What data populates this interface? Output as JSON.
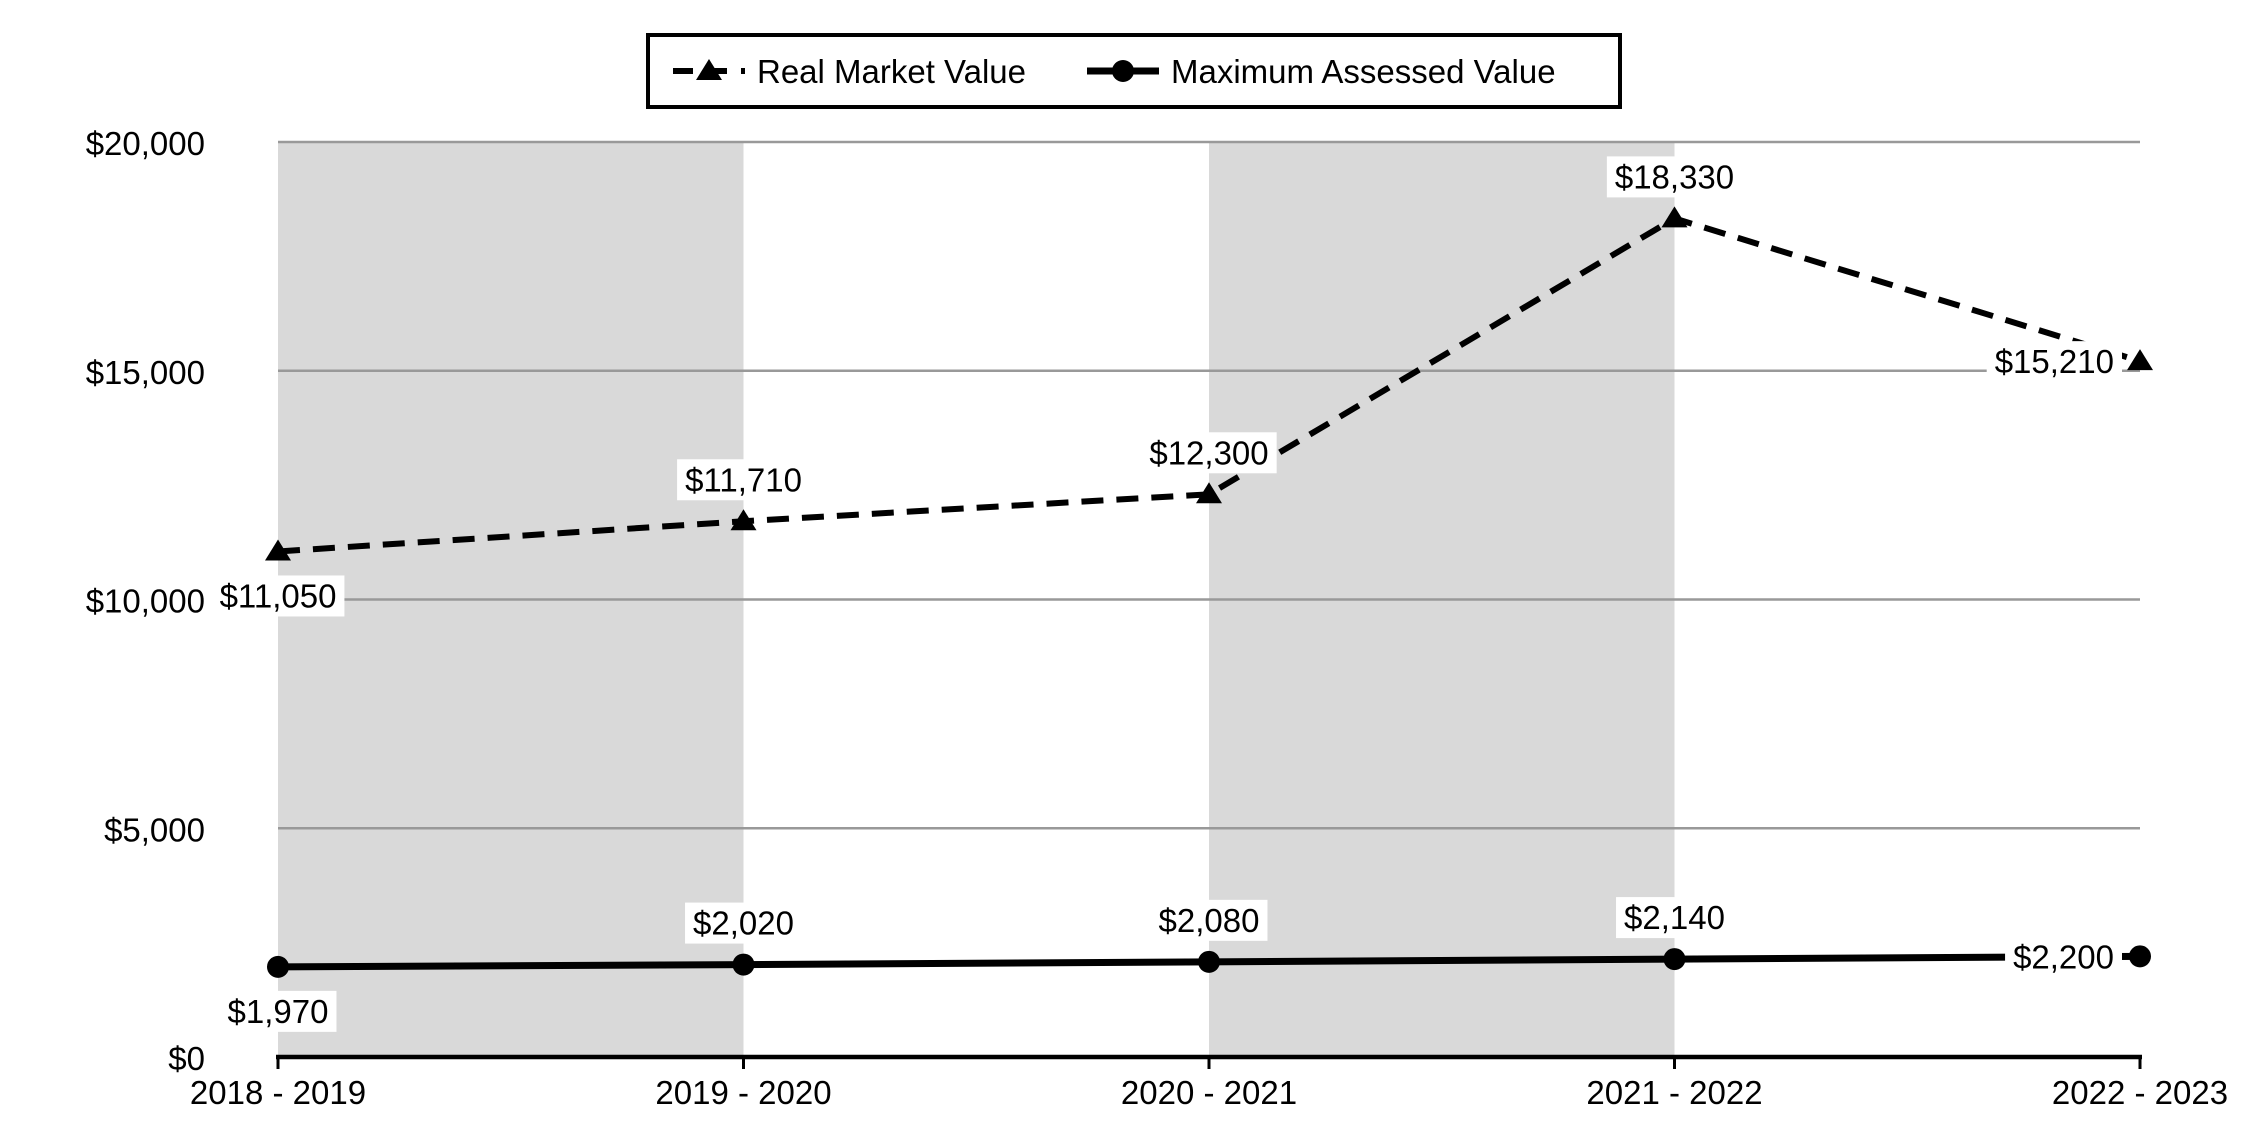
{
  "chart_data": {
    "type": "line",
    "title": "",
    "xlabel": "",
    "ylabel": "",
    "categories": [
      "2018 - 2019",
      "2019 - 2020",
      "2020 - 2021",
      "2021 - 2022",
      "2022 - 2023"
    ],
    "series": [
      {
        "name": "Real Market Value",
        "values": [
          11050,
          11710,
          12300,
          18330,
          15210
        ],
        "labels": [
          "$11,050",
          "$11,710",
          "$12,300",
          "$18,330",
          "$15,210"
        ],
        "label_positions": [
          "below",
          "above",
          "above",
          "above",
          "left"
        ],
        "line_style": "dashed",
        "marker": "triangle"
      },
      {
        "name": "Maximum Assessed Value",
        "values": [
          1970,
          2020,
          2080,
          2140,
          2200
        ],
        "labels": [
          "$1,970",
          "$2,020",
          "$2,080",
          "$2,140",
          "$2,200"
        ],
        "label_positions": [
          "below",
          "above",
          "above",
          "above",
          "left"
        ],
        "line_style": "solid",
        "marker": "circle"
      }
    ],
    "y_axis": {
      "ticks": [
        {
          "value": 0,
          "label": "$0"
        },
        {
          "value": 5000,
          "label": "$5,000"
        },
        {
          "value": 10000,
          "label": "$10,000"
        },
        {
          "value": 15000,
          "label": "$15,000"
        },
        {
          "value": 20000,
          "label": "$20,000"
        }
      ]
    },
    "ylim": [
      0,
      20000
    ],
    "grid": true,
    "legend": {
      "position": "top",
      "border": true,
      "entries": [
        "Real Market Value",
        "Maximum Assessed Value"
      ]
    },
    "plot_bands": {
      "type": "alternating-x-columns",
      "color": "#d9d9d9",
      "shaded_intervals": [
        0,
        2
      ]
    }
  },
  "colors": {
    "series": "#000000",
    "axis": "#000000",
    "gridline": "#999999",
    "band": "#d9d9d9",
    "label_bg": "#ffffff",
    "legend_border": "#000000",
    "background": "#ffffff"
  }
}
